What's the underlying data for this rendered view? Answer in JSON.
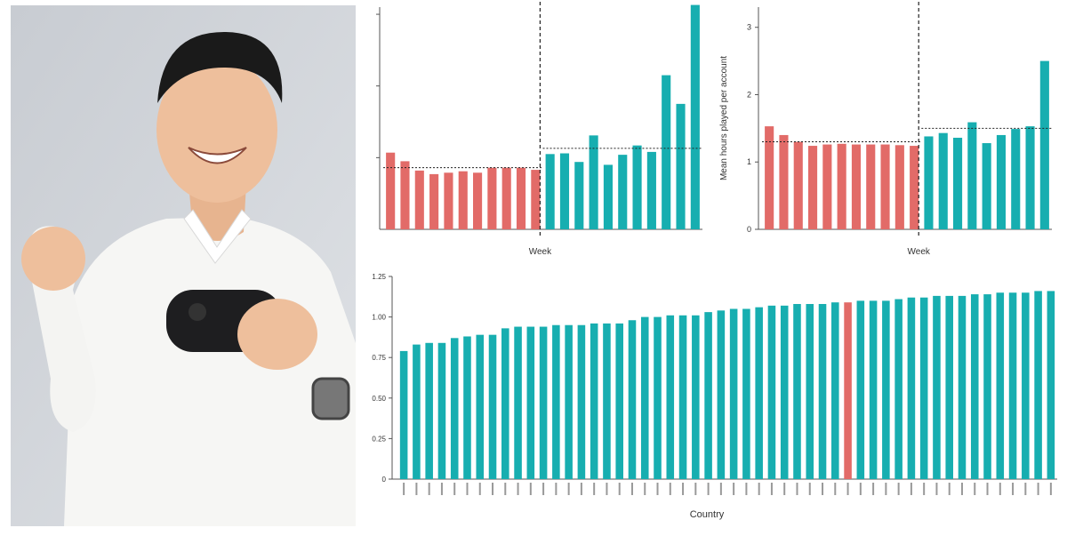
{
  "colors": {
    "red": "#e26b68",
    "teal": "#17aeb0",
    "axis": "#555555"
  },
  "photo": {
    "description_icon": "person-celebrating-with-game-controller"
  },
  "chart_data": [
    {
      "type": "bar",
      "title": "",
      "xlabel": "Week",
      "ylabel": "",
      "ylim": [
        0,
        3.1
      ],
      "tick_labels_legible": false,
      "values": [
        1.07,
        0.95,
        0.82,
        0.77,
        0.79,
        0.81,
        0.79,
        0.86,
        0.86,
        0.86,
        0.83,
        1.05,
        1.06,
        0.94,
        1.31,
        0.9,
        1.04,
        1.17,
        1.08,
        2.15,
        1.75,
        3.13
      ],
      "colors": [
        "red",
        "red",
        "red",
        "red",
        "red",
        "red",
        "red",
        "red",
        "red",
        "red",
        "red",
        "teal",
        "teal",
        "teal",
        "teal",
        "teal",
        "teal",
        "teal",
        "teal",
        "teal",
        "teal",
        "teal"
      ],
      "divider_after_index": 10,
      "reference_lines": [
        {
          "from_index": 0,
          "to_index": 10,
          "value": 0.86
        },
        {
          "from_index": 11,
          "to_index": 21,
          "value": 1.13
        }
      ]
    },
    {
      "type": "bar",
      "title": "",
      "xlabel": "Week",
      "ylabel": "Mean hours played per account",
      "yticks": [
        "0",
        "1",
        "2",
        "3"
      ],
      "ylim": [
        0,
        3.3
      ],
      "values": [
        1.53,
        1.4,
        1.3,
        1.24,
        1.26,
        1.27,
        1.26,
        1.26,
        1.26,
        1.25,
        1.24,
        1.38,
        1.43,
        1.36,
        1.59,
        1.28,
        1.4,
        1.49,
        1.53,
        2.5
      ],
      "colors": [
        "red",
        "red",
        "red",
        "red",
        "red",
        "red",
        "red",
        "red",
        "red",
        "red",
        "red",
        "teal",
        "teal",
        "teal",
        "teal",
        "teal",
        "teal",
        "teal",
        "teal",
        "teal"
      ],
      "divider_after_index": 10,
      "reference_lines": [
        {
          "from_index": 0,
          "to_index": 10,
          "value": 1.3
        },
        {
          "from_index": 11,
          "to_index": 19,
          "value": 1.5
        }
      ]
    },
    {
      "type": "bar",
      "title": "",
      "xlabel": "Country",
      "ylabel": "",
      "yticks": [
        "0",
        "0.25",
        "0.50",
        "0.75",
        "1.00",
        "1.25"
      ],
      "ylim": [
        0,
        1.25
      ],
      "category_labels_legible": false,
      "values": [
        0.79,
        0.83,
        0.84,
        0.84,
        0.87,
        0.88,
        0.89,
        0.89,
        0.93,
        0.94,
        0.94,
        0.94,
        0.95,
        0.95,
        0.95,
        0.96,
        0.96,
        0.96,
        0.98,
        1.0,
        1.0,
        1.01,
        1.01,
        1.01,
        1.03,
        1.04,
        1.05,
        1.05,
        1.06,
        1.07,
        1.07,
        1.08,
        1.08,
        1.08,
        1.09,
        1.09,
        1.1,
        1.1,
        1.1,
        1.11,
        1.12,
        1.12,
        1.13,
        1.13,
        1.13,
        1.14,
        1.14,
        1.15,
        1.15,
        1.15,
        1.16,
        1.16
      ],
      "highlight_index": 35,
      "colors": {
        "default": "teal",
        "highlight": "red"
      }
    }
  ]
}
